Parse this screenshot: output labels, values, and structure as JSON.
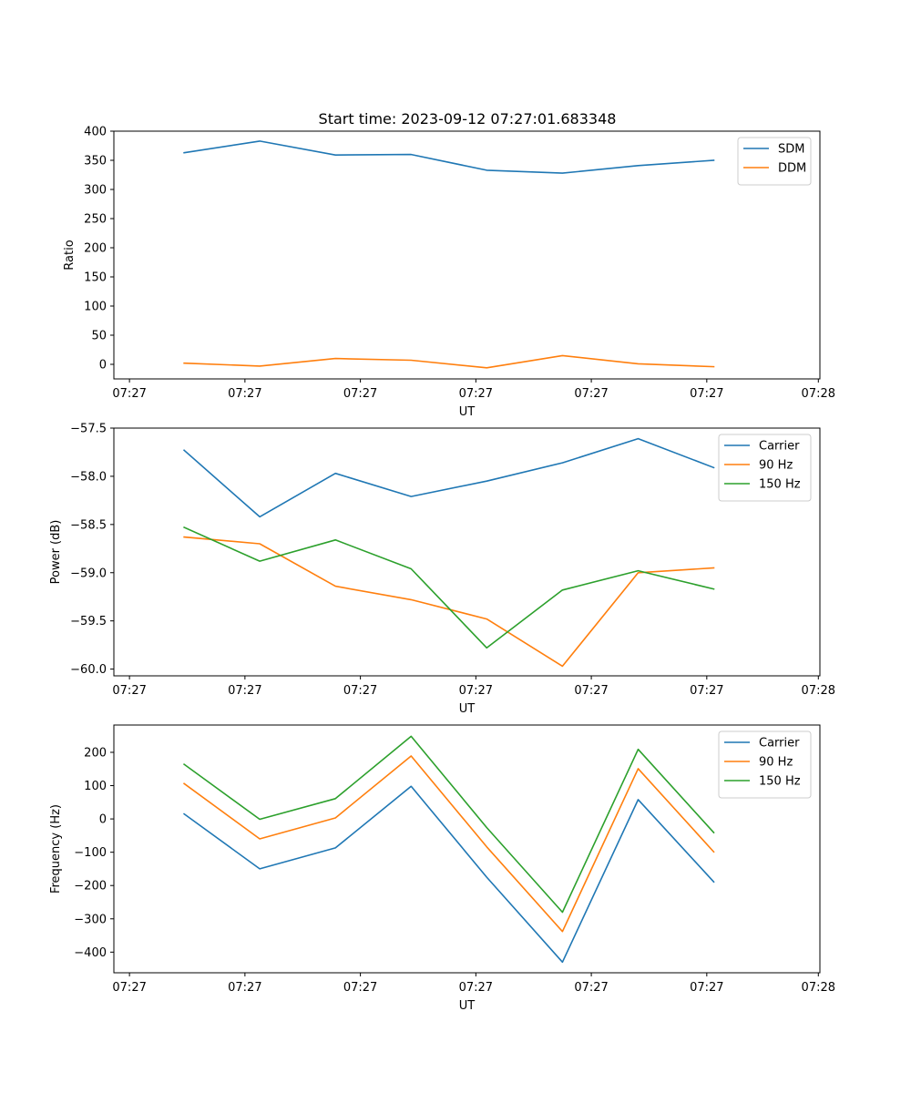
{
  "figure_title": "Start time: 2023-09-12 07:27:01.683348",
  "chart_data": [
    {
      "type": "line",
      "xlabel": "UT",
      "ylabel": "Ratio",
      "ylim": [
        -25,
        400
      ],
      "yticks": [
        0,
        50,
        100,
        150,
        200,
        250,
        300,
        350,
        400
      ],
      "ytick_labels": [
        "0",
        "50",
        "100",
        "150",
        "200",
        "250",
        "300",
        "350",
        "400"
      ],
      "xlim": [
        -0.6,
        8.45
      ],
      "xticks": [
        -0.4,
        1.08,
        2.56,
        4.04,
        5.52,
        7.0,
        8.43
      ],
      "xtick_labels": [
        "07:27",
        "07:27",
        "07:27",
        "07:27",
        "07:27",
        "07:27",
        "07:28"
      ],
      "x": [
        0.3,
        1.27,
        2.24,
        3.21,
        4.18,
        5.15,
        6.12,
        7.09
      ],
      "legend_loc": "upper right",
      "grid": false,
      "series": [
        {
          "name": "SDM",
          "color": "#1f77b4",
          "values": [
            363,
            383,
            359,
            360,
            333,
            328,
            341,
            350
          ]
        },
        {
          "name": "DDM",
          "color": "#ff7f0e",
          "values": [
            2,
            -3,
            10,
            7,
            -6,
            15,
            1,
            -4
          ]
        }
      ]
    },
    {
      "type": "line",
      "xlabel": "UT",
      "ylabel": "Power (dB)",
      "ylim": [
        -60.07,
        -57.5
      ],
      "yticks": [
        -60.0,
        -59.5,
        -59.0,
        -58.5,
        -58.0,
        -57.5
      ],
      "ytick_labels": [
        "−60.0",
        "−59.5",
        "−59.0",
        "−58.5",
        "−58.0",
        "−57.5"
      ],
      "xlim": [
        -0.6,
        8.45
      ],
      "xticks": [
        -0.4,
        1.08,
        2.56,
        4.04,
        5.52,
        7.0,
        8.43
      ],
      "xtick_labels": [
        "07:27",
        "07:27",
        "07:27",
        "07:27",
        "07:27",
        "07:27",
        "07:28"
      ],
      "x": [
        0.3,
        1.27,
        2.24,
        3.21,
        4.18,
        5.15,
        6.12,
        7.09
      ],
      "legend_loc": "upper right",
      "grid": false,
      "series": [
        {
          "name": "Carrier",
          "color": "#1f77b4",
          "values": [
            -57.73,
            -58.42,
            -57.97,
            -58.21,
            -58.05,
            -57.86,
            -57.61,
            -57.91
          ]
        },
        {
          "name": "90 Hz",
          "color": "#ff7f0e",
          "values": [
            -58.63,
            -58.7,
            -59.14,
            -59.28,
            -59.48,
            -59.97,
            -59.0,
            -58.95
          ]
        },
        {
          "name": "150 Hz",
          "color": "#2ca02c",
          "values": [
            -58.53,
            -58.88,
            -58.66,
            -58.96,
            -59.78,
            -59.18,
            -58.98,
            -59.17
          ]
        }
      ]
    },
    {
      "type": "line",
      "xlabel": "UT",
      "ylabel": "Frequency (Hz)",
      "ylim": [
        -462,
        282
      ],
      "yticks": [
        -400,
        -300,
        -200,
        -100,
        0,
        100,
        200
      ],
      "ytick_labels": [
        "−400",
        "−300",
        "−200",
        "−100",
        "0",
        "100",
        "200"
      ],
      "xlim": [
        -0.6,
        8.45
      ],
      "xticks": [
        -0.4,
        1.08,
        2.56,
        4.04,
        5.52,
        7.0,
        8.43
      ],
      "xtick_labels": [
        "07:27",
        "07:27",
        "07:27",
        "07:27",
        "07:27",
        "07:27",
        "07:28"
      ],
      "x": [
        0.3,
        1.27,
        2.24,
        3.21,
        4.18,
        5.15,
        6.12,
        7.09
      ],
      "legend_loc": "upper right",
      "grid": false,
      "series": [
        {
          "name": "Carrier",
          "color": "#1f77b4",
          "values": [
            15,
            -150,
            -87,
            98,
            -175,
            -430,
            58,
            -189
          ]
        },
        {
          "name": "90 Hz",
          "color": "#ff7f0e",
          "values": [
            106,
            -60,
            3,
            189,
            -84,
            -338,
            151,
            -99
          ]
        },
        {
          "name": "150 Hz",
          "color": "#2ca02c",
          "values": [
            164,
            -1,
            61,
            248,
            -26,
            -280,
            209,
            -41
          ]
        }
      ]
    }
  ]
}
